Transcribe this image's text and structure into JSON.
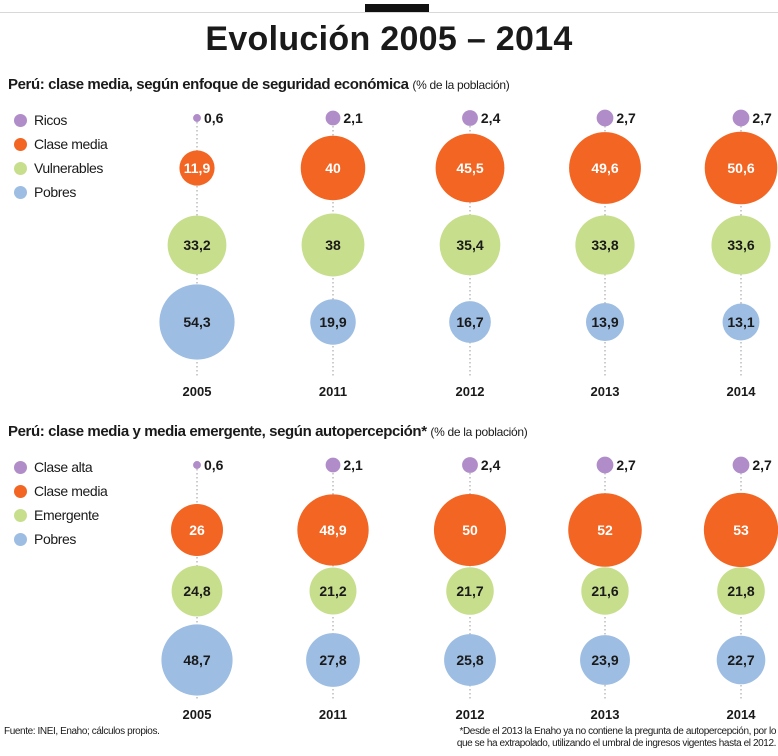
{
  "page": {
    "title": "Evolución 2005 – 2014"
  },
  "footer": {
    "source": "Fuente: INEI, Enaho; cálculos propios.",
    "note_line1": "*Desde el 2013 la Enaho ya no contiene la pregunta de autopercepción, por lo",
    "note_line2": "que se ha extrapolado, utilizando el umbral de ingresos vigentes hasta el 2012."
  },
  "chart_data": [
    {
      "type": "bubble",
      "title": "Perú: clase media, según enfoque de seguridad económica",
      "unit": "(% de la población)",
      "categories": [
        "2005",
        "2011",
        "2012",
        "2013",
        "2014"
      ],
      "series": [
        {
          "name": "Ricos",
          "color": "#b08cc9",
          "values": [
            0.6,
            2.1,
            2.4,
            2.7,
            2.7
          ],
          "labels": [
            "0,6",
            "2,1",
            "2,4",
            "2,7",
            "2,7"
          ]
        },
        {
          "name": "Clase media",
          "color": "#f26522",
          "values": [
            11.9,
            40,
            45.5,
            49.6,
            50.6
          ],
          "labels": [
            "11,9",
            "40",
            "45,5",
            "49,6",
            "50,6"
          ]
        },
        {
          "name": "Vulnerables",
          "color": "#c7df8c",
          "values": [
            33.2,
            38,
            35.4,
            33.8,
            33.6
          ],
          "labels": [
            "33,2",
            "38",
            "35,4",
            "33,8",
            "33,6"
          ]
        },
        {
          "name": "Pobres",
          "color": "#9dbde3",
          "values": [
            54.3,
            19.9,
            16.7,
            13.9,
            13.1
          ],
          "labels": [
            "54,3",
            "19,9",
            "16,7",
            "13,9",
            "13,1"
          ]
        }
      ]
    },
    {
      "type": "bubble",
      "title": "Perú: clase media y media emergente, según autopercepción*",
      "unit": "(% de la población)",
      "categories": [
        "2005",
        "2011",
        "2012",
        "2013",
        "2014"
      ],
      "series": [
        {
          "name": "Clase alta",
          "color": "#b08cc9",
          "values": [
            0.6,
            2.1,
            2.4,
            2.7,
            2.7
          ],
          "labels": [
            "0,6",
            "2,1",
            "2,4",
            "2,7",
            "2,7"
          ]
        },
        {
          "name": "Clase media",
          "color": "#f26522",
          "values": [
            26,
            48.9,
            50,
            52,
            53
          ],
          "labels": [
            "26",
            "48,9",
            "50",
            "52",
            "53"
          ]
        },
        {
          "name": "Emergente",
          "color": "#c7df8c",
          "values": [
            24.8,
            21.2,
            21.7,
            21.6,
            21.8
          ],
          "labels": [
            "24,8",
            "21,2",
            "21,7",
            "21,6",
            "21,8"
          ]
        },
        {
          "name": "Pobres",
          "color": "#9dbde3",
          "values": [
            48.7,
            27.8,
            25.8,
            23.9,
            22.7
          ],
          "labels": [
            "48,7",
            "27,8",
            "25,8",
            "23,9",
            "22,7"
          ]
        }
      ]
    }
  ]
}
